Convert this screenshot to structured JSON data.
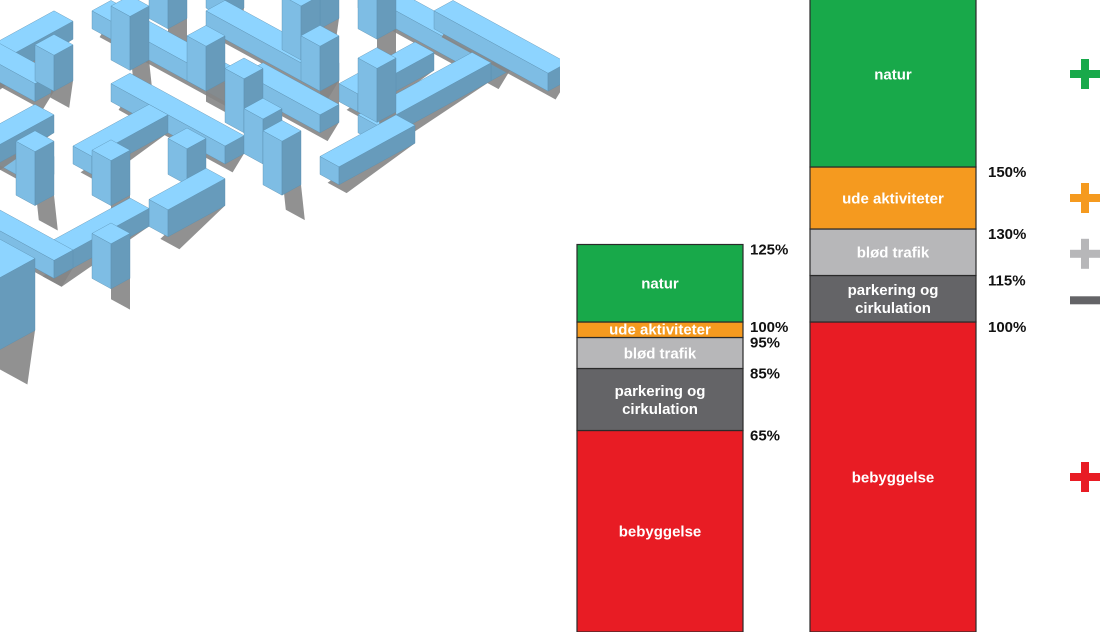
{
  "chart_data": {
    "type": "bar",
    "stacked": true,
    "bars": [
      {
        "segments": [
          {
            "label": "bebyggelse",
            "from": 0,
            "to": 65,
            "color": "#e81c24"
          },
          {
            "label": "parkering og\ncirkulation",
            "from": 65,
            "to": 85,
            "color": "#646467"
          },
          {
            "label": "blød trafik",
            "from": 85,
            "to": 95,
            "color": "#b7b7b9"
          },
          {
            "label": "ude aktiviteter",
            "from": 95,
            "to": 100,
            "color": "#f59a1f"
          },
          {
            "label": "natur",
            "from": 100,
            "to": 125,
            "color": "#18a94a"
          }
        ],
        "tick_labels": [
          "125%",
          "100%",
          "95%",
          "85%",
          "65%"
        ]
      },
      {
        "segments": [
          {
            "label": "bebyggelse",
            "from": 0,
            "to": 100,
            "color": "#e81c24"
          },
          {
            "label": "parkering og\ncirkulation",
            "from": 100,
            "to": 115,
            "color": "#646467"
          },
          {
            "label": "blød trafik",
            "from": 115,
            "to": 130,
            "color": "#b7b7b9"
          },
          {
            "label": "ude aktiviteter",
            "from": 130,
            "to": 150,
            "color": "#f59a1f"
          },
          {
            "label": "natur",
            "from": 150,
            "to": 210,
            "color": "#18a94a"
          }
        ],
        "tick_labels": [
          "150%",
          "130%",
          "115%",
          "100%"
        ]
      }
    ],
    "change_indicators": [
      {
        "symbol": "+",
        "color": "#18a94a",
        "level": 180
      },
      {
        "symbol": "+",
        "color": "#f59a1f",
        "level": 140
      },
      {
        "symbol": "+",
        "color": "#b7b7b9",
        "level": 122
      },
      {
        "symbol": "−",
        "color": "#646467",
        "level": 107
      },
      {
        "symbol": "+",
        "color": "#e81c24",
        "level": 50
      }
    ]
  },
  "illustration": {
    "description_icon": "isometric-city-blocks",
    "block_color": "#7ebde4",
    "shadow_color": "#858585"
  }
}
